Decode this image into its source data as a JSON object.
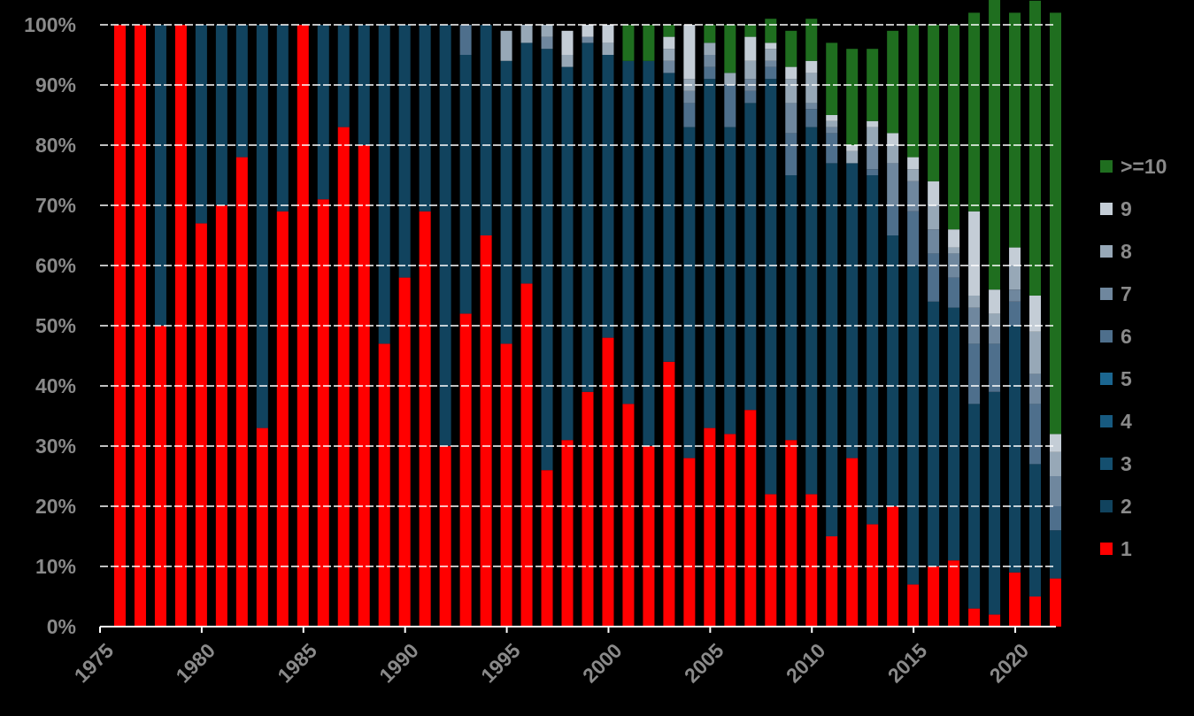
{
  "chart_data": {
    "type": "bar",
    "stacked": true,
    "normalized": true,
    "x": [
      1976,
      1977,
      1978,
      1979,
      1980,
      1981,
      1982,
      1983,
      1984,
      1985,
      1986,
      1987,
      1988,
      1989,
      1990,
      1991,
      1992,
      1993,
      1994,
      1995,
      1996,
      1997,
      1998,
      1999,
      2000,
      2001,
      2002,
      2003,
      2004,
      2005,
      2006,
      2007,
      2008,
      2009,
      2010,
      2011,
      2012,
      2013,
      2014,
      2015,
      2016,
      2017,
      2018,
      2019,
      2020,
      2021,
      2022
    ],
    "xlim": [
      1975,
      2022
    ],
    "x_ticks": [
      1975,
      1980,
      1985,
      1990,
      1995,
      2000,
      2005,
      2010,
      2015,
      2020
    ],
    "x_tick_labels": [
      "1975",
      "1980",
      "1985",
      "1990",
      "1995",
      "2000",
      "2005",
      "2010",
      "2015",
      "2020"
    ],
    "ylim": [
      0,
      100
    ],
    "y_ticks": [
      0,
      10,
      20,
      30,
      40,
      50,
      60,
      70,
      80,
      90,
      100
    ],
    "y_tick_labels": [
      "0%",
      "10%",
      "20%",
      "30%",
      "40%",
      "50%",
      "60%",
      "70%",
      "80%",
      "90%",
      "100%"
    ],
    "grid": "horizontal dashed",
    "legend_position": "right",
    "series": [
      {
        "name": "1",
        "color": "#ff0000",
        "values": [
          100,
          100,
          50,
          100,
          67,
          70,
          78,
          33,
          69,
          100,
          71,
          83,
          80,
          47,
          58,
          69,
          30,
          52,
          65,
          47,
          57,
          26,
          31,
          39,
          48,
          37,
          30,
          44,
          28,
          33,
          32,
          36,
          22,
          31,
          22,
          15,
          28,
          17,
          20,
          7,
          10,
          11,
          3,
          2,
          9,
          5,
          8
        ]
      },
      {
        "name": "2",
        "color": "#11435e",
        "values": [
          0,
          0,
          50,
          0,
          33,
          30,
          22,
          67,
          31,
          0,
          29,
          17,
          20,
          53,
          42,
          31,
          70,
          43,
          35,
          47,
          40,
          70,
          62,
          58,
          47,
          57,
          64,
          48,
          55,
          58,
          51,
          51,
          69,
          44,
          61,
          62,
          49,
          58,
          45,
          53,
          44,
          42,
          34,
          37,
          41,
          22,
          8
        ]
      },
      {
        "name": "3",
        "color": "#144f6f",
        "values": [
          0,
          0,
          0,
          0,
          0,
          0,
          0,
          0,
          0,
          0,
          0,
          0,
          0,
          0,
          0,
          0,
          0,
          0,
          0,
          0,
          0,
          0,
          0,
          0,
          0,
          0,
          0,
          0,
          0,
          0,
          0,
          0,
          0,
          0,
          0,
          0,
          0,
          0,
          0,
          0,
          0,
          0,
          0,
          0,
          0,
          0,
          0
        ]
      },
      {
        "name": "4",
        "color": "#175a80",
        "values": [
          0,
          0,
          0,
          0,
          0,
          0,
          0,
          0,
          0,
          0,
          0,
          0,
          0,
          0,
          0,
          0,
          0,
          0,
          0,
          0,
          0,
          0,
          0,
          0,
          0,
          0,
          0,
          0,
          0,
          0,
          0,
          0,
          0,
          0,
          0,
          0,
          0,
          0,
          0,
          0,
          0,
          0,
          0,
          0,
          0,
          0,
          0
        ]
      },
      {
        "name": "5",
        "color": "#1b6690",
        "values": [
          0,
          0,
          0,
          0,
          0,
          0,
          0,
          0,
          0,
          0,
          0,
          0,
          0,
          0,
          0,
          0,
          0,
          0,
          0,
          0,
          0,
          0,
          0,
          0,
          0,
          0,
          0,
          0,
          0,
          0,
          0,
          0,
          0,
          0,
          0,
          0,
          0,
          0,
          0,
          0,
          0,
          0,
          0,
          0,
          0,
          0,
          0
        ]
      },
      {
        "name": "6",
        "color": "#4e6f8c",
        "values": [
          0,
          0,
          0,
          0,
          0,
          0,
          0,
          0,
          0,
          0,
          0,
          0,
          0,
          0,
          0,
          0,
          0,
          5,
          0,
          0,
          0,
          0,
          0,
          0,
          0,
          0,
          0,
          0,
          4,
          2,
          7,
          2,
          2,
          7,
          3,
          5,
          0,
          1,
          5,
          9,
          8,
          5,
          10,
          8,
          4,
          10,
          4
        ]
      },
      {
        "name": "7",
        "color": "#6f879e",
        "values": [
          0,
          0,
          0,
          0,
          0,
          0,
          0,
          0,
          0,
          0,
          0,
          0,
          0,
          0,
          0,
          0,
          0,
          0,
          0,
          0,
          0,
          2,
          0,
          1,
          0,
          0,
          0,
          2,
          2,
          2,
          0,
          2,
          1,
          5,
          1,
          1,
          0,
          4,
          7,
          5,
          4,
          4,
          6,
          3,
          2,
          5,
          5
        ]
      },
      {
        "name": "8",
        "color": "#97a8b7",
        "values": [
          0,
          0,
          0,
          0,
          0,
          0,
          0,
          0,
          0,
          0,
          0,
          0,
          0,
          0,
          0,
          0,
          0,
          0,
          0,
          5,
          3,
          2,
          2,
          0,
          2,
          0,
          0,
          2,
          2,
          2,
          2,
          3,
          2,
          4,
          5,
          1,
          2,
          3,
          3,
          2,
          4,
          1,
          2,
          2,
          4,
          7,
          4
        ]
      },
      {
        "name": "9",
        "color": "#c4cdd6",
        "values": [
          0,
          0,
          0,
          0,
          0,
          0,
          0,
          0,
          0,
          0,
          0,
          0,
          0,
          0,
          0,
          0,
          0,
          0,
          0,
          0,
          0,
          0,
          4,
          2,
          3,
          0,
          0,
          2,
          9,
          0,
          0,
          4,
          1,
          2,
          2,
          1,
          1,
          1,
          2,
          2,
          4,
          3,
          14,
          4,
          3,
          6,
          3
        ]
      },
      {
        "name": ">=10",
        "color": "#1f6e1f",
        "values": [
          0,
          0,
          0,
          0,
          0,
          0,
          0,
          0,
          0,
          0,
          0,
          0,
          0,
          0,
          0,
          0,
          0,
          0,
          0,
          0,
          0,
          0,
          0,
          0,
          0,
          6,
          6,
          2,
          0,
          3,
          8,
          2,
          4,
          6,
          7,
          12,
          16,
          12,
          17,
          22,
          26,
          34,
          33,
          52,
          39,
          49,
          70
        ]
      }
    ]
  }
}
